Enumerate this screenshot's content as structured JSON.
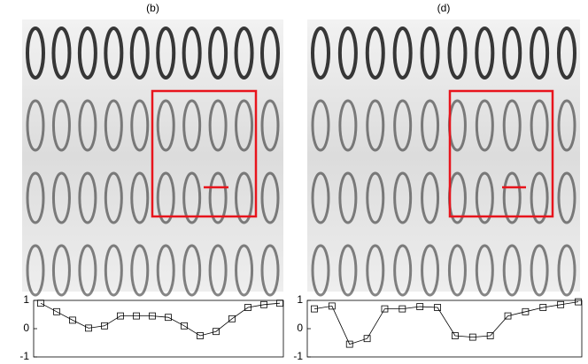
{
  "chart_data": [
    {
      "type": "line",
      "title": "(b)",
      "values": [
        0.9,
        0.6,
        0.3,
        0.02,
        0.1,
        0.45,
        0.45,
        0.45,
        0.4,
        0.1,
        -0.25,
        -0.1,
        0.35,
        0.75,
        0.85,
        0.9
      ],
      "ylim": [
        -1,
        1
      ],
      "yticks": [
        -1,
        0,
        1
      ],
      "color": "#000000",
      "marker": "square"
    },
    {
      "type": "line",
      "title": "(d)",
      "values": [
        0.7,
        0.8,
        -0.55,
        -0.35,
        0.7,
        0.7,
        0.78,
        0.75,
        -0.25,
        -0.3,
        -0.25,
        0.45,
        0.6,
        0.75,
        0.85,
        0.95
      ],
      "ylim": [
        -1,
        1
      ],
      "yticks": [
        -1,
        0,
        1
      ],
      "color": "#000000",
      "marker": "square"
    }
  ]
}
